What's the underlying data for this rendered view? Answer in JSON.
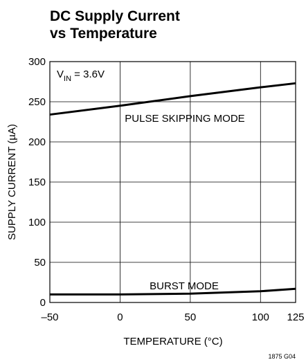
{
  "chart_data": {
    "type": "line",
    "title": [
      "DC Supply Current",
      "vs Temperature"
    ],
    "x_label": "TEMPERATURE (°C)",
    "y_label": "SUPPLY CURRENT (µA)",
    "annotation": {
      "main": "V",
      "sub": "IN",
      "rest": " = 3.6V"
    },
    "footnote": "1875 G04",
    "x": [
      -50,
      0,
      50,
      100,
      125
    ],
    "series": [
      {
        "name": "PULSE SKIPPING MODE",
        "color": "#000000",
        "values": [
          234,
          245,
          257,
          268,
          273
        ]
      },
      {
        "name": "BURST MODE",
        "color": "#000000",
        "values": [
          10,
          10,
          11,
          14,
          17
        ]
      }
    ],
    "xlim": [
      -50,
      125
    ],
    "xticks": [
      {
        "value": -50,
        "label": "–50"
      },
      0,
      50,
      100,
      125
    ],
    "ylim": [
      0,
      300
    ],
    "yticks": [
      0,
      50,
      100,
      150,
      200,
      250,
      300
    ],
    "grid": true
  }
}
